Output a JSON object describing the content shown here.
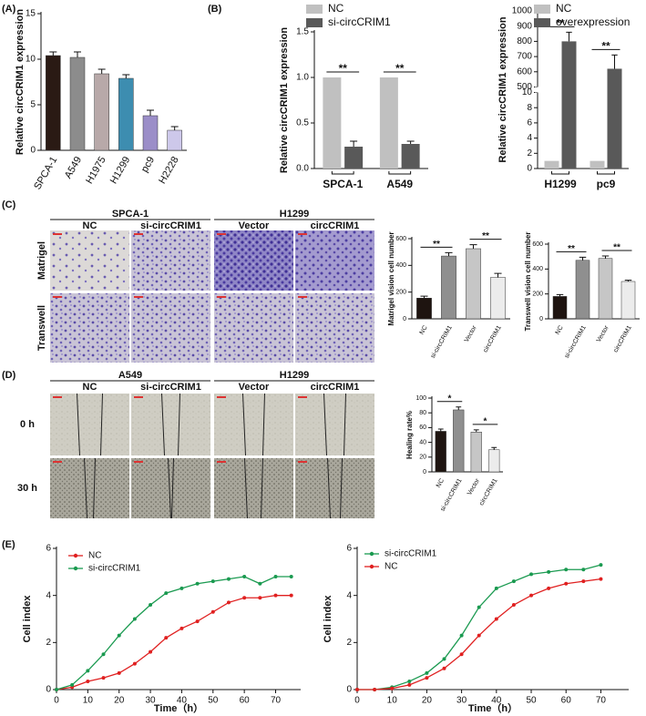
{
  "chart_data": [
    {
      "type": "bar",
      "panel": "(A)",
      "ylabel": "Relative circCRIM1 expression",
      "categories": [
        "SPCA-1",
        "A549",
        "H1975",
        "H1299",
        "pc9",
        "H2228"
      ],
      "values": [
        10.4,
        10.2,
        8.4,
        7.9,
        3.8,
        2.2
      ],
      "errors": [
        0.4,
        0.6,
        0.5,
        0.4,
        0.6,
        0.4
      ],
      "colors": [
        "#2a1a14",
        "#8c8c8c",
        "#b8a9a9",
        "#3d8db0",
        "#9b8ec8",
        "#cdc8ea"
      ],
      "ylim": [
        0,
        15
      ],
      "yticks": [
        0,
        5,
        10,
        15
      ]
    },
    {
      "type": "grouped-bar",
      "panel": "(B)",
      "ylabel": "Relative  circCRIM1 expression",
      "categories": [
        "SPCA-1",
        "A549"
      ],
      "series": [
        {
          "name": "NC",
          "color": "#c0c0c0",
          "values": [
            1.0,
            1.0
          ]
        },
        {
          "name": "si-circCRIM1",
          "color": "#595959",
          "values": [
            0.24,
            0.27
          ],
          "errors": [
            0.06,
            0.03
          ]
        }
      ],
      "ylim": [
        0,
        1.5
      ],
      "yticks": [
        {
          "value": 0,
          "label": "0.0"
        },
        {
          "value": 0.5,
          "label": "0.5"
        },
        {
          "value": 1,
          "label": "1.0"
        },
        {
          "value": 1.5,
          "label": "1.5"
        }
      ],
      "annotations": [
        "**",
        "**"
      ]
    },
    {
      "type": "grouped-bar",
      "ylabel": "Relative circCRIM1 expression",
      "categories": [
        "H1299",
        "pc9"
      ],
      "series": [
        {
          "name": "NC",
          "color": "#c0c0c0",
          "values": [
            1,
            1
          ]
        },
        {
          "name": "overexpression",
          "color": "#595959",
          "values": [
            800,
            620
          ],
          "errors": [
            60,
            90
          ]
        }
      ],
      "ylim": [
        0,
        1000
      ],
      "ybreak": [
        10,
        500
      ],
      "yticks": [
        0,
        2,
        4,
        6,
        8,
        10,
        500,
        600,
        700,
        800,
        900,
        1000
      ],
      "annotations": [
        "**",
        "**"
      ]
    },
    {
      "type": "bar",
      "ylabel": "Matrigel vision cell number",
      "categories": [
        "NC",
        "si-circCRIM1",
        "Vector",
        "circCRIM1"
      ],
      "values": [
        155,
        470,
        525,
        310
      ],
      "errors": [
        15,
        25,
        30,
        30
      ],
      "colors": [
        "#1e1410",
        "#8f8f8f",
        "#c6c6c6",
        "#ececec"
      ],
      "ylim": [
        0,
        600
      ],
      "yticks": [
        0,
        200,
        400,
        600
      ],
      "annotations": [
        "**",
        "**"
      ]
    },
    {
      "type": "bar",
      "ylabel": "Transwell vision cell number",
      "categories": [
        "NC",
        "si-circCRIM1",
        "Vector",
        "circCRIM1"
      ],
      "values": [
        180,
        470,
        485,
        300
      ],
      "errors": [
        15,
        25,
        20,
        10
      ],
      "colors": [
        "#1e1410",
        "#8f8f8f",
        "#c6c6c6",
        "#ececec"
      ],
      "ylim": [
        0,
        600
      ],
      "yticks": [
        0,
        200,
        400,
        600
      ],
      "annotations": [
        "**",
        "**"
      ]
    },
    {
      "type": "bar",
      "ylabel": "Healing rate%",
      "categories": [
        "NC",
        "si-circCRIM1",
        "Vector",
        "circCRIM1"
      ],
      "values": [
        55,
        84,
        54,
        30
      ],
      "errors": [
        3,
        4,
        3,
        3
      ],
      "colors": [
        "#1e1410",
        "#8f8f8f",
        "#c6c6c6",
        "#ececec"
      ],
      "ylim": [
        0,
        100
      ],
      "yticks": [
        0,
        20,
        40,
        60,
        80,
        100
      ],
      "annotations": [
        "*",
        "*"
      ]
    },
    {
      "type": "line",
      "panel": "(E)",
      "xlabel": "Time（h）",
      "ylabel": "Cell index",
      "x": [
        0,
        5,
        10,
        15,
        20,
        25,
        30,
        35,
        40,
        45,
        50,
        55,
        60,
        65,
        70,
        75
      ],
      "series": [
        {
          "name": "NC",
          "color": "#e02020",
          "values": [
            0,
            0.1,
            0.35,
            0.5,
            0.7,
            1.1,
            1.6,
            2.2,
            2.6,
            2.9,
            3.3,
            3.7,
            3.9,
            3.9,
            4.0,
            4.0
          ]
        },
        {
          "name": "si-circCRIM1",
          "color": "#1a9a50",
          "values": [
            0,
            0.2,
            0.8,
            1.5,
            2.3,
            3.0,
            3.6,
            4.1,
            4.3,
            4.5,
            4.6,
            4.7,
            4.8,
            4.5,
            4.8,
            4.8
          ]
        }
      ],
      "xlim": [
        0,
        78
      ],
      "xticks": [
        0,
        10,
        20,
        30,
        40,
        50,
        60,
        70
      ],
      "ylim": [
        0,
        6
      ],
      "yticks": [
        0,
        2,
        4,
        6
      ]
    },
    {
      "type": "line",
      "xlabel": "Time（h）",
      "ylabel": "Cell index",
      "x": [
        0,
        5,
        10,
        15,
        20,
        25,
        30,
        35,
        40,
        45,
        50,
        55,
        60,
        65,
        70
      ],
      "series": [
        {
          "name": "si-circCRIM1",
          "color": "#1a9a50",
          "values": [
            0,
            0,
            0.1,
            0.35,
            0.7,
            1.3,
            2.3,
            3.5,
            4.3,
            4.6,
            4.9,
            5.0,
            5.1,
            5.1,
            5.3
          ]
        },
        {
          "name": "NC",
          "color": "#e02020",
          "values": [
            0,
            0,
            0.05,
            0.2,
            0.5,
            0.9,
            1.5,
            2.3,
            3.0,
            3.6,
            4.0,
            4.3,
            4.5,
            4.6,
            4.7
          ]
        }
      ],
      "xlim": [
        0,
        78
      ],
      "xticks": [
        0,
        10,
        20,
        30,
        40,
        50,
        60,
        70
      ],
      "ylim": [
        0,
        6
      ],
      "yticks": [
        0,
        2,
        4,
        6
      ]
    }
  ],
  "image_panels": [
    {
      "panel": "(C)",
      "groups": [
        {
          "title": "SPCA-1",
          "columns": [
            "NC",
            "si-circCRIM1"
          ]
        },
        {
          "title": "H1299",
          "columns": [
            "Vector",
            "circCRIM1"
          ]
        }
      ],
      "rows": [
        "Matrigel",
        "Transwell"
      ]
    },
    {
      "panel": "(D)",
      "groups": [
        {
          "title": "A549",
          "columns": [
            "NC",
            "si-circCRIM1"
          ]
        },
        {
          "title": "H1299",
          "columns": [
            "Vector",
            "circCRIM1"
          ]
        }
      ],
      "rows": [
        "0 h",
        "30 h"
      ]
    }
  ]
}
